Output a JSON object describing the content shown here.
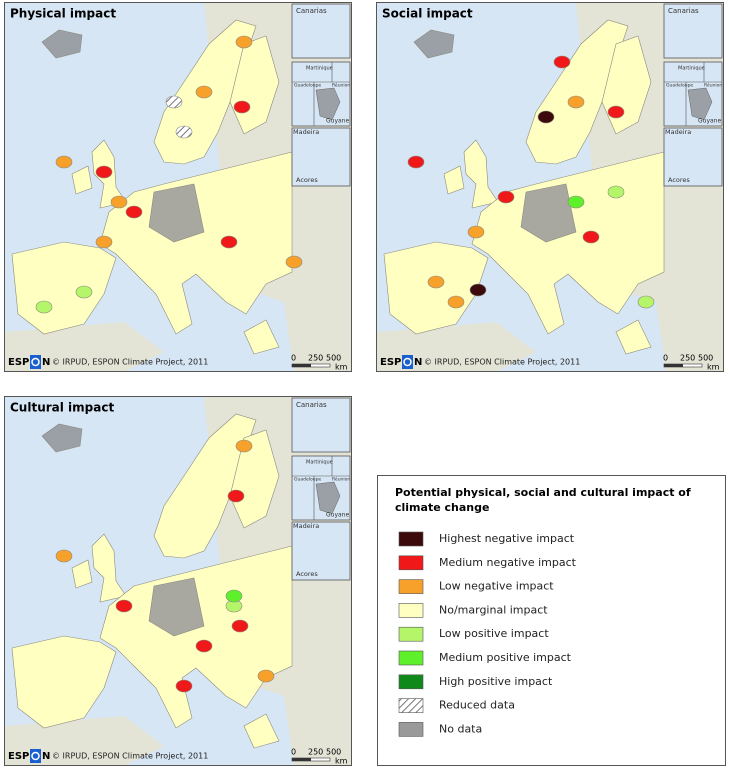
{
  "panels": [
    {
      "title": "Physical impact"
    },
    {
      "title": "Social impact"
    },
    {
      "title": "Cultural impact"
    }
  ],
  "insets": {
    "canarias": "Canarias",
    "martinique": "Martinique",
    "guadeloupe": "Guadeloupe",
    "reunion": "Réunion",
    "guyane": "Guyane",
    "madeira": "Madeira",
    "acores": "Acores"
  },
  "logo": {
    "left": "ESP",
    "right": "N"
  },
  "credit": "© IRPUD, ESPON Climate Project, 2011",
  "scale": {
    "ticks": [
      "0",
      "250",
      "500"
    ],
    "unit": "km"
  },
  "legend": {
    "title": "Potential physical, social and cultural impact of climate change",
    "items": [
      {
        "label": "Highest negative impact",
        "color": "#3c0a0a"
      },
      {
        "label": "Medium negative impact",
        "color": "#f01818"
      },
      {
        "label": "Low negative impact",
        "color": "#f7a02a"
      },
      {
        "label": "No/marginal impact",
        "color": "#ffffc2"
      },
      {
        "label": "Low positive impact",
        "color": "#b4f56a"
      },
      {
        "label": "Medium positive impact",
        "color": "#5ef02a"
      },
      {
        "label": "High positive impact",
        "color": "#0f8a1a"
      },
      {
        "label": "Reduced data",
        "pattern": "hatch"
      },
      {
        "label": "No data",
        "color": "#9a9a9a"
      }
    ]
  }
}
